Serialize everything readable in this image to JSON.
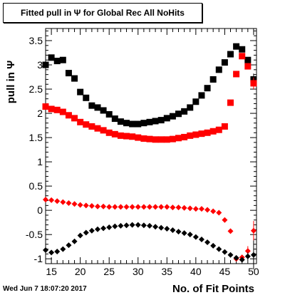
{
  "window": {
    "title": "Fitted pull in  Ψ  for Global Rec All NoHits",
    "timestamp": "Wed Jun  7 18:07:20 2017"
  },
  "colors": {
    "black": "#000000",
    "red": "#ff0000",
    "frame": "#000000"
  },
  "chart_data": {
    "type": "scatter",
    "title": "Fitted pull in  Ψ  for Global Rec All NoHits",
    "xlabel": "No. of Fit Points",
    "ylabel": "pull in Ψ",
    "xlim": [
      14,
      50.5
    ],
    "ylim": [
      -1.1,
      3.75
    ],
    "x_ticks": [
      15,
      20,
      25,
      30,
      35,
      40,
      45,
      50
    ],
    "y_ticks": [
      -1,
      -0.5,
      0,
      0.5,
      1,
      1.5,
      2,
      2.5,
      3,
      3.5
    ],
    "x_tick_labels": [
      "15",
      "20",
      "25",
      "30",
      "35",
      "40",
      "45",
      "50"
    ],
    "y_tick_labels": [
      "-1",
      "-0.5",
      "0",
      "0.5",
      "1",
      "1.5",
      "2",
      "2.5",
      "3",
      "3.5"
    ],
    "grid": false,
    "series": [
      {
        "marker": "square",
        "color": "#000000",
        "x": [
          14,
          15,
          16,
          17,
          18,
          19,
          20,
          21,
          22,
          23,
          24,
          25,
          26,
          27,
          28,
          29,
          30,
          31,
          32,
          33,
          34,
          35,
          36,
          37,
          38,
          39,
          40,
          41,
          42,
          43,
          44,
          45,
          46,
          47,
          48,
          49,
          50
        ],
        "y": [
          3.0,
          3.15,
          3.08,
          3.1,
          2.83,
          2.72,
          2.44,
          2.32,
          2.16,
          2.12,
          2.06,
          1.98,
          1.89,
          1.83,
          1.8,
          1.78,
          1.78,
          1.8,
          1.82,
          1.84,
          1.86,
          1.9,
          1.94,
          1.99,
          2.04,
          2.12,
          2.24,
          2.37,
          2.52,
          2.7,
          2.9,
          3.05,
          3.22,
          3.38,
          3.32,
          3.1,
          2.7
        ],
        "yerr": [
          0,
          0,
          0,
          0,
          0,
          0,
          0,
          0,
          0,
          0,
          0,
          0,
          0,
          0,
          0,
          0,
          0,
          0,
          0,
          0,
          0,
          0,
          0,
          0,
          0,
          0,
          0,
          0,
          0,
          0,
          0,
          0,
          0,
          0,
          0,
          0,
          0.12
        ]
      },
      {
        "marker": "square",
        "color": "#ff0000",
        "x": [
          14,
          15,
          16,
          17,
          18,
          19,
          20,
          21,
          22,
          23,
          24,
          25,
          26,
          27,
          28,
          29,
          30,
          31,
          32,
          33,
          34,
          35,
          36,
          37,
          38,
          39,
          40,
          41,
          42,
          43,
          44,
          45,
          46,
          47,
          48,
          49,
          50
        ],
        "y": [
          2.14,
          2.09,
          2.07,
          2.03,
          1.96,
          1.9,
          1.82,
          1.77,
          1.73,
          1.69,
          1.65,
          1.6,
          1.57,
          1.54,
          1.53,
          1.52,
          1.5,
          1.48,
          1.47,
          1.46,
          1.46,
          1.46,
          1.47,
          1.49,
          1.51,
          1.54,
          1.56,
          1.58,
          1.6,
          1.63,
          1.66,
          1.73,
          2.22,
          2.81,
          3.18,
          2.97,
          2.62
        ],
        "yerr": [
          0,
          0,
          0,
          0,
          0,
          0,
          0,
          0,
          0,
          0,
          0,
          0,
          0,
          0,
          0,
          0,
          0,
          0,
          0,
          0,
          0,
          0,
          0,
          0,
          0,
          0,
          0,
          0,
          0,
          0,
          0,
          0,
          0,
          0,
          0,
          0,
          0.12
        ]
      },
      {
        "marker": "diamond",
        "color": "#ff0000",
        "x": [
          14,
          15,
          16,
          17,
          18,
          19,
          20,
          21,
          22,
          23,
          24,
          25,
          26,
          27,
          28,
          29,
          30,
          31,
          32,
          33,
          34,
          35,
          36,
          37,
          38,
          39,
          40,
          41,
          42,
          43,
          44,
          45,
          46,
          47,
          48,
          49,
          50
        ],
        "y": [
          0.22,
          0.21,
          0.19,
          0.17,
          0.15,
          0.13,
          0.11,
          0.1,
          0.09,
          0.08,
          0.08,
          0.07,
          0.07,
          0.07,
          0.07,
          0.07,
          0.07,
          0.07,
          0.07,
          0.07,
          0.07,
          0.07,
          0.06,
          0.06,
          0.05,
          0.04,
          0.03,
          0.03,
          0.01,
          -0.02,
          -0.05,
          -0.2,
          -0.43,
          -1.0,
          -0.97,
          -0.84,
          -0.42
        ],
        "yerr": [
          0,
          0,
          0,
          0,
          0,
          0,
          0,
          0,
          0,
          0,
          0,
          0,
          0,
          0,
          0,
          0,
          0,
          0,
          0,
          0,
          0,
          0,
          0,
          0,
          0,
          0,
          0,
          0,
          0,
          0,
          0,
          0,
          0,
          0,
          0,
          0.1,
          0.2
        ]
      },
      {
        "marker": "diamond",
        "color": "#000000",
        "x": [
          14,
          15,
          16,
          17,
          18,
          19,
          20,
          21,
          22,
          23,
          24,
          25,
          26,
          27,
          28,
          29,
          30,
          31,
          32,
          33,
          34,
          35,
          36,
          37,
          38,
          39,
          40,
          41,
          42,
          43,
          44,
          45,
          46,
          47,
          48,
          49,
          50
        ],
        "y": [
          -0.82,
          -0.87,
          -0.85,
          -0.8,
          -0.72,
          -0.64,
          -0.52,
          -0.46,
          -0.42,
          -0.39,
          -0.37,
          -0.35,
          -0.33,
          -0.32,
          -0.31,
          -0.3,
          -0.3,
          -0.31,
          -0.32,
          -0.34,
          -0.36,
          -0.38,
          -0.41,
          -0.44,
          -0.47,
          -0.5,
          -0.55,
          -0.6,
          -0.66,
          -0.73,
          -0.8,
          -0.86,
          -0.92,
          -0.98,
          -1.02,
          -0.95,
          -0.92
        ],
        "yerr": [
          0,
          0,
          0,
          0,
          0,
          0,
          0,
          0,
          0,
          0,
          0,
          0,
          0,
          0,
          0,
          0,
          0,
          0,
          0,
          0,
          0,
          0,
          0,
          0,
          0,
          0,
          0,
          0,
          0,
          0,
          0,
          0,
          0,
          0,
          0,
          0.08,
          0.3
        ]
      }
    ]
  }
}
